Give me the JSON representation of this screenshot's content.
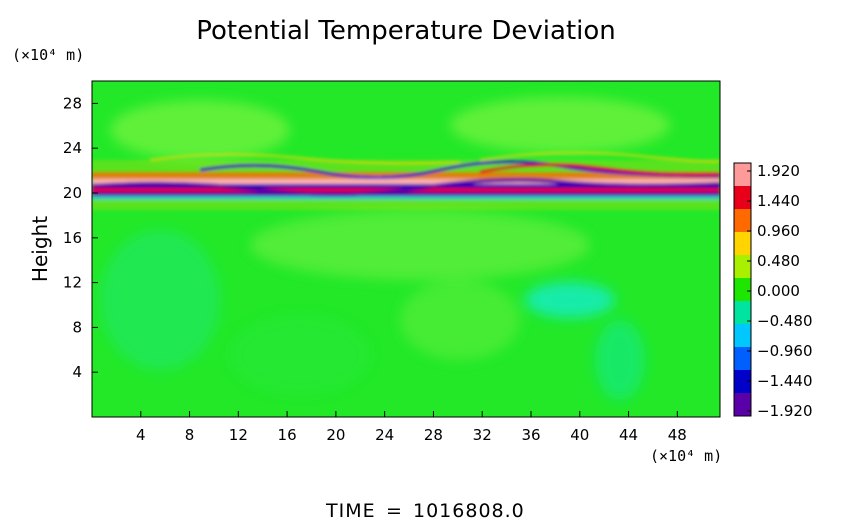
{
  "chart_data": {
    "type": "heatmap",
    "title": "Potential Temperature Deviation",
    "ylabel": "Height",
    "y_unit": "(×10⁴ m)",
    "x_unit": "(×10⁴ m)",
    "xlim": [
      0,
      51.5
    ],
    "ylim": [
      0,
      30
    ],
    "x_ticks": [
      4,
      8,
      12,
      16,
      20,
      24,
      28,
      32,
      36,
      40,
      44,
      48
    ],
    "y_ticks": [
      4,
      8,
      12,
      16,
      20,
      24,
      28
    ],
    "colorbar": {
      "labels": [
        "1.920",
        "1.440",
        "0.960",
        "0.480",
        "0.000",
        "−0.480",
        "−0.960",
        "−1.440",
        "−1.920"
      ],
      "colors": [
        "#ff9a9a",
        "#e8001a",
        "#ff6a00",
        "#ffd400",
        "#a8f000",
        "#1ee600",
        "#00e4a0",
        "#00c8ff",
        "#0060ff",
        "#0000c8",
        "#5a00a8"
      ]
    },
    "background_value": 0.05,
    "band": {
      "y_center_range": [
        20,
        21.5
      ],
      "min": -1.92,
      "max": 1.92,
      "description_note": "strong oscillating positive/negative layer near height 20-22"
    }
  },
  "footer": {
    "time_label": "TIME",
    "time_value": "1016808.0"
  },
  "colors": {
    "background_green": "#22e828",
    "light_green": "#66ef3a",
    "cyan_green": "#14ee86"
  }
}
